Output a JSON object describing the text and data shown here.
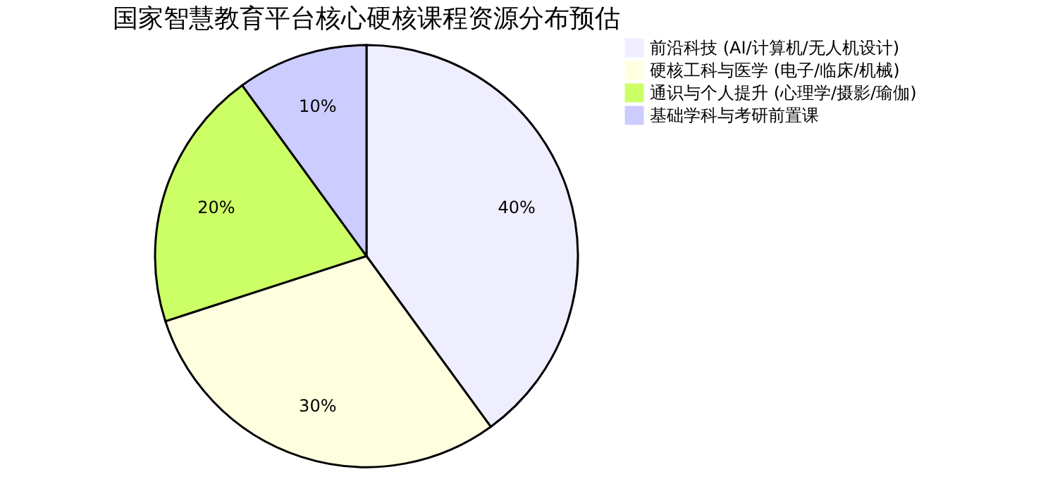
{
  "chart_data": {
    "type": "pie",
    "title": "国家智慧教育平台核心硬核课程资源分布预估",
    "categories": [
      "前沿科技 (AI/计算机/无人机设计)",
      "硬核工科与医学 (电子/临床/机械)",
      "通识与个人提升 (心理学/摄影/瑜伽)",
      "基础学科与考研前置课"
    ],
    "values": [
      40,
      30,
      20,
      10
    ],
    "colors": [
      "#eeeeff",
      "#ffffe0",
      "#ccff66",
      "#ccccff"
    ],
    "value_labels": [
      "40%",
      "30%",
      "20%",
      "10%"
    ],
    "legend": "right"
  }
}
